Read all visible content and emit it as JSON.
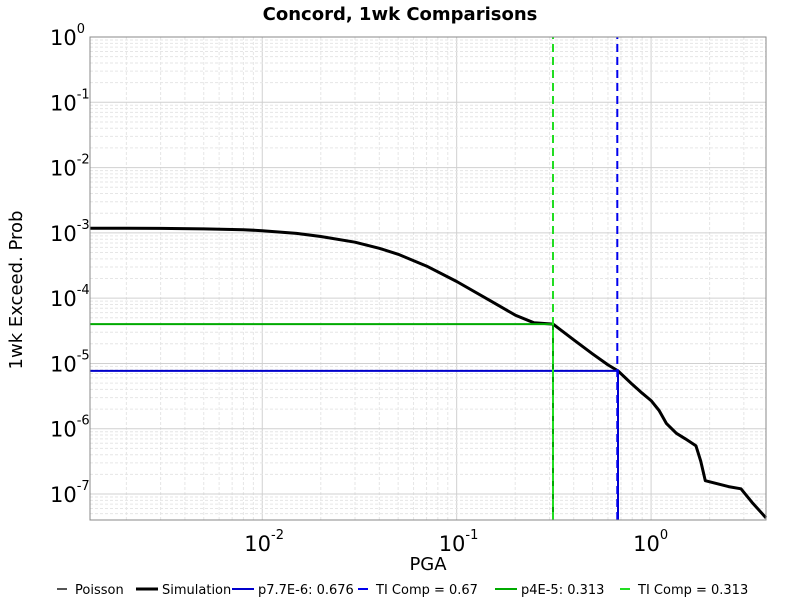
{
  "chart_data": {
    "type": "line",
    "title": "Concord, 1wk Comparisons",
    "xlabel": "PGA",
    "ylabel": "1wk Exceed. Prob",
    "x_scale": "log",
    "y_scale": "log",
    "xlim": [
      0.0013,
      3.9
    ],
    "ylim": [
      4e-08,
      1
    ],
    "grid": true,
    "legend_position": "bottom",
    "x_ticks": [
      {
        "base": "10",
        "exp": "-2",
        "value": 0.01
      },
      {
        "base": "10",
        "exp": "-1",
        "value": 0.1
      },
      {
        "base": "10",
        "exp": "0",
        "value": 1
      }
    ],
    "y_ticks": [
      {
        "base": "10",
        "exp": "0",
        "value": 1
      },
      {
        "base": "10",
        "exp": "-1",
        "value": 0.1
      },
      {
        "base": "10",
        "exp": "-2",
        "value": 0.01
      },
      {
        "base": "10",
        "exp": "-3",
        "value": 0.001
      },
      {
        "base": "10",
        "exp": "-4",
        "value": 0.0001
      },
      {
        "base": "10",
        "exp": "-5",
        "value": 1e-05
      },
      {
        "base": "10",
        "exp": "-6",
        "value": 1e-06
      },
      {
        "base": "10",
        "exp": "-7",
        "value": 1e-07
      }
    ],
    "series": [
      {
        "name": "Poisson",
        "color": "#555555",
        "style": "dashed",
        "points": []
      },
      {
        "name": "Simulation",
        "color": "#000000",
        "style": "solid",
        "points": [
          [
            0.0013,
            0.00118
          ],
          [
            0.003,
            0.00117
          ],
          [
            0.005,
            0.00115
          ],
          [
            0.008,
            0.00112
          ],
          [
            0.01,
            0.00108
          ],
          [
            0.015,
            0.00098
          ],
          [
            0.02,
            0.00088
          ],
          [
            0.03,
            0.00072
          ],
          [
            0.04,
            0.00058
          ],
          [
            0.05,
            0.00047
          ],
          [
            0.07,
            0.00031
          ],
          [
            0.1,
            0.00018
          ],
          [
            0.15,
            9e-05
          ],
          [
            0.2,
            5.5e-05
          ],
          [
            0.25,
            4.2e-05
          ],
          [
            0.313,
            4e-05
          ],
          [
            0.4,
            2.3e-05
          ],
          [
            0.5,
            1.4e-05
          ],
          [
            0.6,
            9.5e-06
          ],
          [
            0.676,
            7.7e-06
          ],
          [
            0.8,
            4.8e-06
          ],
          [
            0.9,
            3.5e-06
          ],
          [
            1.0,
            2.7e-06
          ],
          [
            1.1,
            1.9e-06
          ],
          [
            1.2,
            1.2e-06
          ],
          [
            1.35,
            8.5e-07
          ],
          [
            1.5,
            7e-07
          ],
          [
            1.7,
            5.5e-07
          ],
          [
            1.8,
            3.2e-07
          ],
          [
            1.9,
            1.6e-07
          ],
          [
            2.5,
            1.3e-07
          ],
          [
            2.9,
            1.2e-07
          ],
          [
            3.3,
            7.5e-08
          ],
          [
            3.9,
            4.3e-08
          ]
        ]
      },
      {
        "name": "p7.7E-6: 0.676",
        "color": "#0000cc",
        "style": "solid",
        "points": [
          [
            0.0013,
            7.7e-06
          ],
          [
            0.676,
            7.7e-06
          ],
          [
            0.676,
            4e-08
          ]
        ]
      },
      {
        "name": "TI Comp = 0.67",
        "color": "#0000ee",
        "style": "dashed",
        "points": [
          [
            0.67,
            4e-08
          ],
          [
            0.67,
            1
          ]
        ]
      },
      {
        "name": "p4E-5: 0.313",
        "color": "#00aa00",
        "style": "solid",
        "points": [
          [
            0.0013,
            4e-05
          ],
          [
            0.313,
            4e-05
          ],
          [
            0.313,
            4e-08
          ]
        ]
      },
      {
        "name": "TI Comp = 0.313",
        "color": "#22dd22",
        "style": "dashed",
        "points": [
          [
            0.313,
            4e-08
          ],
          [
            0.313,
            1
          ]
        ]
      }
    ]
  }
}
